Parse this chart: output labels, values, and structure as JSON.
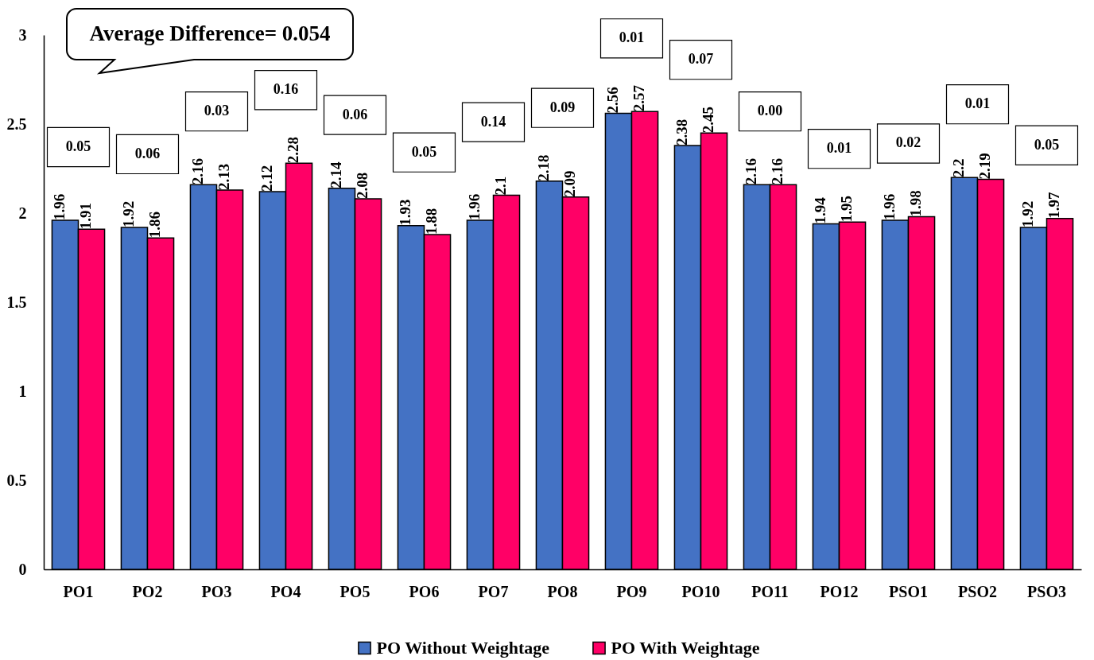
{
  "chart_data": {
    "type": "bar",
    "categories": [
      "PO1",
      "PO2",
      "PO3",
      "PO4",
      "PO5",
      "PO6",
      "PO7",
      "PO8",
      "PO9",
      "PO10",
      "PO11",
      "PO12",
      "PSO1",
      "PSO2",
      "PSO3"
    ],
    "series": [
      {
        "name": "PO Without Weightage",
        "color": "#4472c4",
        "values": [
          1.96,
          1.92,
          2.16,
          2.12,
          2.14,
          1.93,
          1.96,
          2.18,
          2.56,
          2.38,
          2.16,
          1.94,
          1.96,
          2.2,
          1.92
        ]
      },
      {
        "name": "PO With Weightage",
        "color": "#ff0066",
        "values": [
          1.91,
          1.86,
          2.13,
          2.28,
          2.08,
          1.88,
          2.1,
          2.09,
          2.57,
          2.45,
          2.16,
          1.95,
          1.98,
          2.19,
          1.97
        ]
      }
    ],
    "ylim": [
      0,
      3
    ],
    "yticks": [
      0,
      0.5,
      1,
      1.5,
      2,
      2.5,
      3
    ],
    "legend": "bottom",
    "data_labels": true,
    "annotations": [
      "Average Difference= 0.054",
      "0.05",
      "0.06",
      "0.03",
      "0.16",
      "0.06",
      "0.05",
      "0.14",
      "0.09",
      "0.01",
      "0.07",
      "0.00",
      "0.01",
      "0.02",
      "0.01",
      "0.05"
    ]
  }
}
